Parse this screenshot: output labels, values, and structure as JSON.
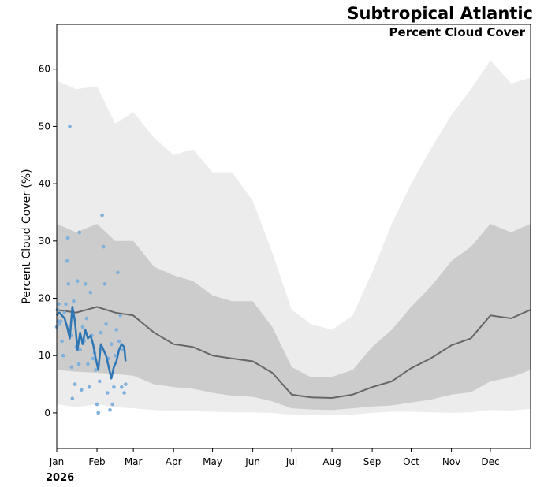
{
  "chart_data": {
    "type": "line",
    "title": "Subtropical Atlantic",
    "subtitle": "Percent Cloud Cover",
    "xlabel": "",
    "ylabel": "Percent Cloud Cover (%)",
    "year_label": "2026",
    "ylim": [
      -6.2,
      67.8
    ],
    "xlim_day_of_year": [
      0,
      365
    ],
    "yticks": [
      0,
      10,
      20,
      30,
      40,
      50,
      60
    ],
    "month_ticks": [
      {
        "label": "Jan",
        "day": 0
      },
      {
        "label": "Feb",
        "day": 31
      },
      {
        "label": "Mar",
        "day": 59
      },
      {
        "label": "Apr",
        "day": 90
      },
      {
        "label": "May",
        "day": 120
      },
      {
        "label": "Jun",
        "day": 151
      },
      {
        "label": "Jul",
        "day": 181
      },
      {
        "label": "Aug",
        "day": 212
      },
      {
        "label": "Sep",
        "day": 243
      },
      {
        "label": "Oct",
        "day": 273
      },
      {
        "label": "Nov",
        "day": 304
      },
      {
        "label": "Dec",
        "day": 334
      }
    ],
    "climatology": {
      "day": [
        0,
        15,
        31,
        45,
        59,
        75,
        90,
        105,
        120,
        135,
        151,
        166,
        181,
        196,
        212,
        228,
        243,
        258,
        273,
        288,
        304,
        319,
        334,
        350,
        365
      ],
      "mean": [
        18,
        17.5,
        18.5,
        17.5,
        17,
        14,
        12,
        11.5,
        10,
        9.5,
        9,
        7,
        3.2,
        2.7,
        2.6,
        3.2,
        4.5,
        5.5,
        7.8,
        9.5,
        11.8,
        13,
        17,
        16.5,
        18
      ],
      "band_inner_low": [
        7.5,
        7.2,
        7,
        6.8,
        6.5,
        5,
        4.5,
        4.2,
        3.5,
        3,
        2.8,
        2,
        0.8,
        0.6,
        0.5,
        0.8,
        1.1,
        1.3,
        1.8,
        2.3,
        3.2,
        3.6,
        5.5,
        6.2,
        7.5
      ],
      "band_inner_high": [
        33,
        31.5,
        33,
        30,
        30,
        25.5,
        24,
        23,
        20.5,
        19.5,
        19.5,
        15,
        8,
        6.2,
        6.3,
        7.5,
        11.5,
        14.5,
        18.5,
        22,
        26.5,
        29,
        33,
        31.5,
        33
      ],
      "band_outer_low": [
        1.5,
        1,
        1.5,
        1,
        0.8,
        0.5,
        0.3,
        0.3,
        0.2,
        0.1,
        0.1,
        0,
        -0.3,
        -0.4,
        -0.4,
        -0.3,
        0,
        0.2,
        0.2,
        0.1,
        0,
        0.1,
        0.5,
        0.4,
        0.7
      ],
      "band_outer_high": [
        58,
        56.5,
        57,
        50.5,
        52.5,
        48,
        45,
        46,
        42,
        42,
        37,
        28,
        18,
        15.5,
        14.5,
        17,
        24.5,
        33,
        40,
        46,
        52,
        56.5,
        61.5,
        57.5,
        58.5
      ]
    },
    "series_2026": {
      "name": "2026",
      "day": [
        0,
        2,
        4,
        6,
        8,
        10,
        12,
        14,
        16,
        18,
        20,
        22,
        24,
        26,
        28,
        30,
        32,
        34,
        36,
        38,
        40,
        42,
        44,
        46,
        48,
        50,
        52,
        53
      ],
      "values": [
        17,
        17.5,
        17,
        16.5,
        15,
        13,
        18.5,
        16,
        11,
        14,
        12,
        14.5,
        13,
        13.5,
        12,
        9.5,
        7.5,
        12,
        11,
        10,
        8,
        6,
        8,
        9,
        11,
        12,
        11.5,
        9
      ]
    },
    "observations": {
      "name": "daily observations",
      "day": [
        0,
        0.5,
        1,
        1.5,
        2,
        3,
        4,
        5,
        6,
        7,
        8,
        8.5,
        9,
        10,
        11,
        11.5,
        12,
        13,
        14,
        15,
        16,
        17,
        17.5,
        18,
        19,
        20,
        21,
        22,
        23,
        24,
        25,
        26,
        27,
        28,
        29,
        30,
        31,
        32,
        33,
        34,
        35,
        36,
        37,
        38,
        39,
        40,
        41,
        42,
        43,
        44,
        45,
        46,
        47,
        48,
        49,
        50,
        51,
        52,
        53
      ],
      "values": [
        15,
        18,
        16,
        19,
        15.5,
        16,
        12.5,
        10,
        17.5,
        19,
        26.5,
        30.5,
        22.5,
        50,
        13.5,
        8,
        2.5,
        19.5,
        5,
        11.5,
        23,
        8.5,
        31.5,
        11,
        4,
        15,
        12.5,
        22.5,
        16.5,
        8.5,
        4.5,
        21,
        13.5,
        9.5,
        10.5,
        7.5,
        1.5,
        0,
        5.5,
        14,
        34.5,
        29,
        22.5,
        15.5,
        3.5,
        9.5,
        0.5,
        12,
        1.5,
        4.5,
        10,
        14.5,
        24.5,
        12.5,
        17,
        4.5,
        11,
        3.5,
        5
      ]
    }
  }
}
